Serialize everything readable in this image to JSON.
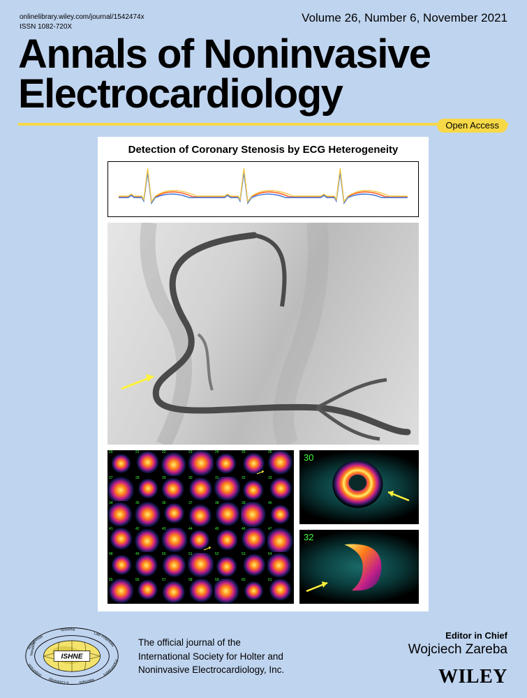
{
  "meta": {
    "url": "onlinelibrary.wiley.com/journal/1542474x",
    "issn": "ISSN  1082-720X"
  },
  "volume_info": "Volume 26, Number 6, November 2021",
  "journal_title_line1": "Annals of Noninvasive",
  "journal_title_line2": "Electrocardiology",
  "open_access_label": "Open Access",
  "figure": {
    "title": "Detection of Coronary Stenosis by ECG Heterogeneity",
    "ecg": {
      "trace_colors": [
        "#ff5a1f",
        "#3a6fd8",
        "#f2c94c"
      ],
      "background": "#ffffff",
      "border_color": "#000000",
      "num_beats": 3
    },
    "angiogram": {
      "vessel_color": "#5a5a5a",
      "background_gradient": [
        "#e6e6e6",
        "#bcbcbc",
        "#dedede"
      ],
      "arrow_color": "#fff23a"
    },
    "scan_grid": {
      "rows": 6,
      "cols": 7,
      "cell_gradient": [
        "#ffef6a",
        "#ff7b1a",
        "#c21f8a",
        "#2a2a7a",
        "#000000"
      ]
    },
    "scan_large": [
      {
        "label": "30",
        "arrow_angle": 200
      },
      {
        "label": "32",
        "arrow_angle": 20
      }
    ],
    "label_color": "#3cff3c",
    "arrow_color": "#fff23a"
  },
  "logo": {
    "acronym": "ISHNE",
    "ring_labels": [
      "Arrhythmias",
      "Ischemia",
      "Late Potentials",
      "Pacemakers",
      "Alternans",
      "e-Cardiology",
      "Dispersion",
      "Variability"
    ],
    "globe_fill": "#f3e36b",
    "land_fill": "#d9c84a",
    "ring_color": "#000000"
  },
  "official_text_lines": [
    "The official journal of the",
    "International Society for Holter and",
    "Noninvasive Electrocardiology, Inc."
  ],
  "editor": {
    "label": "Editor in Chief",
    "name": "Wojciech Zareba"
  },
  "publisher": "WILEY",
  "colors": {
    "page_bg": "#bfd4ef",
    "accent_yellow": "#f7d948",
    "text": "#000000"
  }
}
